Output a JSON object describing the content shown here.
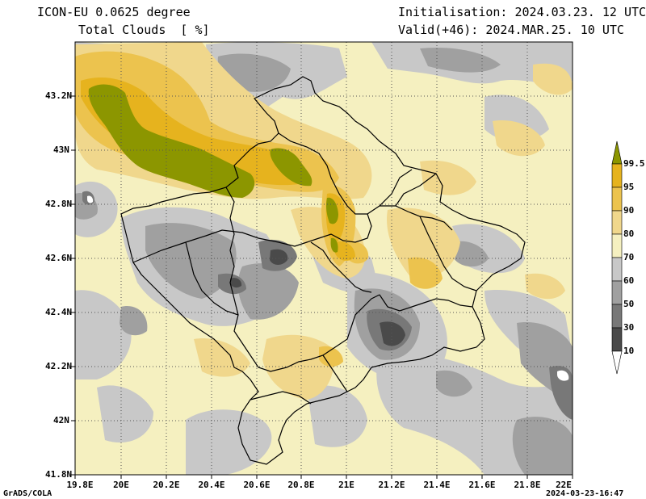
{
  "header": {
    "model": "ICON-EU 0.0625 degree",
    "variable": "Total Clouds  [ %]",
    "init": "Initialisation: 2024.03.23. 12 UTC",
    "valid": "Valid(+46): 2024.MAR.25. 10 UTC"
  },
  "axes": {
    "y_ticks": [
      "43.2N",
      "43N",
      "42.8N",
      "42.6N",
      "42.4N",
      "42.2N",
      "42N",
      "41.8N"
    ],
    "x_ticks": [
      "19.8E",
      "20E",
      "20.2E",
      "20.4E",
      "20.6E",
      "20.8E",
      "21E",
      "21.2E",
      "21.4E",
      "21.6E",
      "21.8E",
      "22E"
    ]
  },
  "colorbar": {
    "labels": [
      "99.5",
      "95",
      "90",
      "80",
      "70",
      "60",
      "50",
      "30",
      "10"
    ],
    "colors": [
      "#8c9600",
      "#e6b31e",
      "#ecc34e",
      "#f0d78c",
      "#f5f0c0",
      "#c8c8c8",
      "#a0a0a0",
      "#787878",
      "#4a4a4a",
      "#ffffff"
    ]
  },
  "footer": {
    "left": "GrADS/COLA",
    "right": "2024-03-23-16:47"
  }
}
